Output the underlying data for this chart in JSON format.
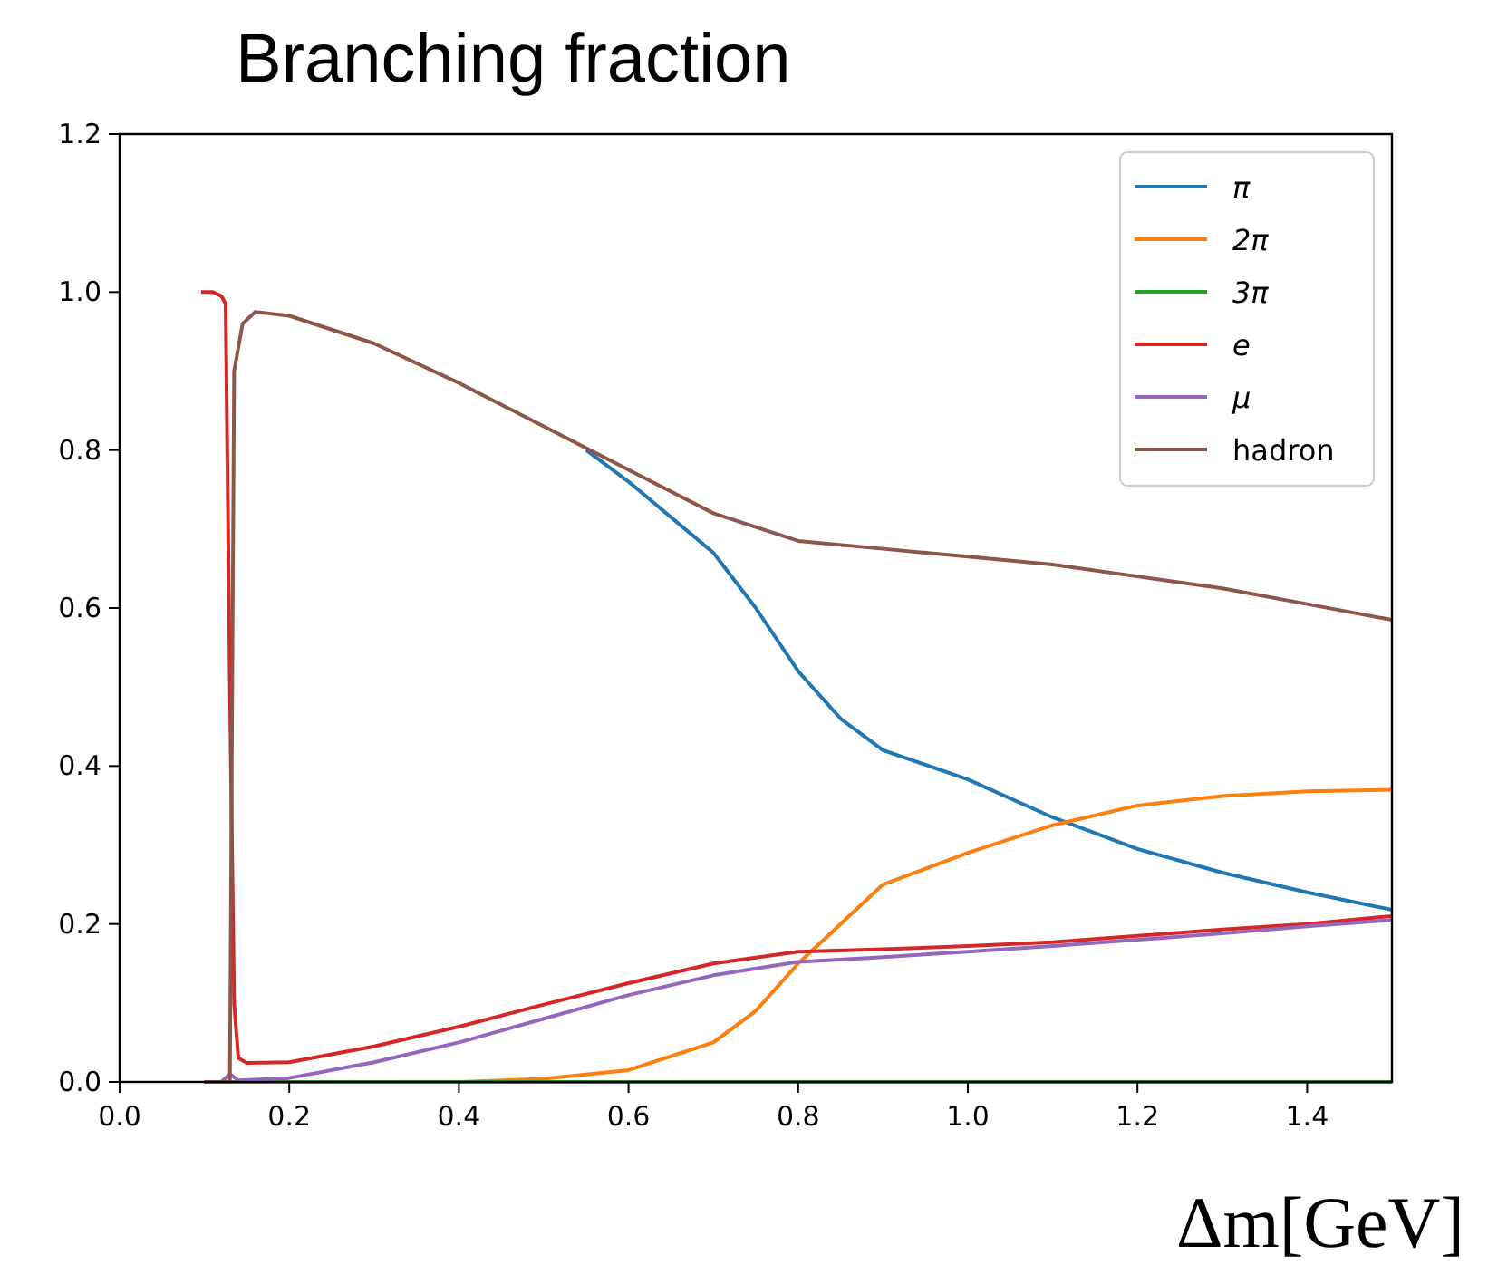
{
  "chart_data": {
    "type": "line",
    "title": "Branching fraction",
    "xlabel": "Δm[GeV]",
    "xlim": [
      0,
      1.5
    ],
    "ylim": [
      0,
      1.2
    ],
    "xticks": [
      {
        "value": 0,
        "label": "0.0"
      },
      0.2,
      0.4,
      0.6,
      0.8,
      {
        "value": 1,
        "label": "1.0"
      },
      1.2,
      1.4
    ],
    "yticks": [
      {
        "value": 0,
        "label": "0.0"
      },
      0.2,
      0.4,
      0.6,
      0.8,
      {
        "value": 1,
        "label": "1.0"
      },
      1.2
    ],
    "grid": false,
    "legend": "top right",
    "marker": "none",
    "line_style": "solid",
    "series": [
      {
        "name": "π",
        "color": "#1f77b4",
        "x": [
          0.55,
          0.6,
          0.7,
          0.75,
          0.8,
          0.85,
          0.9,
          1.0,
          1.1,
          1.2,
          1.3,
          1.4,
          1.5
        ],
        "values": [
          0.8,
          0.76,
          0.67,
          0.6,
          0.52,
          0.46,
          0.42,
          0.383,
          0.335,
          0.295,
          0.265,
          0.24,
          0.218
        ]
      },
      {
        "name": "2π",
        "color": "#ff7f0e",
        "x": [
          0.1,
          0.4,
          0.5,
          0.6,
          0.7,
          0.75,
          0.8,
          0.85,
          0.9,
          1.0,
          1.1,
          1.2,
          1.3,
          1.4,
          1.5
        ],
        "values": [
          0,
          0,
          0.004,
          0.015,
          0.05,
          0.09,
          0.15,
          0.2,
          0.25,
          0.29,
          0.325,
          0.35,
          0.362,
          0.368,
          0.37
        ]
      },
      {
        "name": "3π",
        "color": "#2ca02c",
        "x": [
          0.1,
          1.5
        ],
        "values": [
          0,
          0
        ]
      },
      {
        "name": "e",
        "color": "#d62728",
        "x": [
          0.096,
          0.11,
          0.12,
          0.125,
          0.13,
          0.135,
          0.14,
          0.15,
          0.2,
          0.3,
          0.4,
          0.5,
          0.6,
          0.7,
          0.8,
          0.9,
          1.0,
          1.1,
          1.2,
          1.3,
          1.4,
          1.5
        ],
        "values": [
          1.0,
          1.0,
          0.995,
          0.985,
          0.5,
          0.1,
          0.03,
          0.024,
          0.025,
          0.045,
          0.07,
          0.098,
          0.125,
          0.15,
          0.165,
          0.168,
          0.172,
          0.177,
          0.185,
          0.193,
          0.2,
          0.21
        ]
      },
      {
        "name": "μ",
        "color": "#9467bd",
        "x": [
          0.1,
          0.12,
          0.13,
          0.14,
          0.2,
          0.3,
          0.4,
          0.5,
          0.6,
          0.7,
          0.8,
          0.9,
          1.0,
          1.1,
          1.2,
          1.3,
          1.4,
          1.5
        ],
        "values": [
          0,
          0,
          0.01,
          0.002,
          0.005,
          0.025,
          0.05,
          0.08,
          0.11,
          0.135,
          0.152,
          0.158,
          0.165,
          0.172,
          0.18,
          0.188,
          0.197,
          0.205
        ]
      },
      {
        "name": "hadron",
        "color": "#8c564b",
        "x": [
          0.1,
          0.13,
          0.135,
          0.145,
          0.16,
          0.2,
          0.3,
          0.4,
          0.5,
          0.6,
          0.7,
          0.8,
          0.9,
          1.0,
          1.1,
          1.2,
          1.3,
          1.4,
          1.5
        ],
        "values": [
          0,
          0,
          0.9,
          0.96,
          0.975,
          0.97,
          0.935,
          0.885,
          0.83,
          0.775,
          0.72,
          0.685,
          0.675,
          0.665,
          0.655,
          0.64,
          0.625,
          0.605,
          0.585
        ]
      }
    ]
  }
}
